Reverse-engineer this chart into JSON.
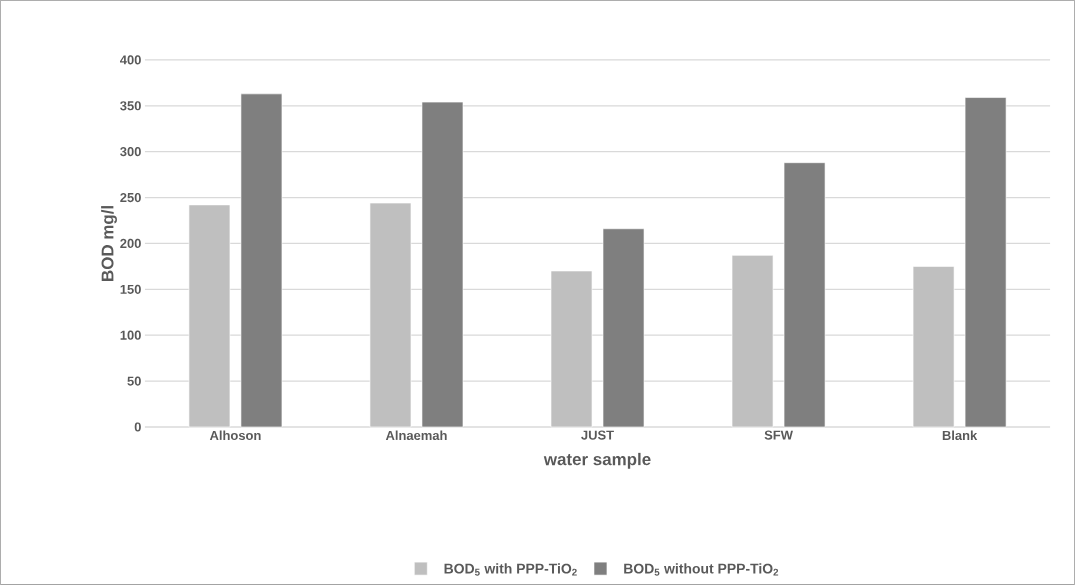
{
  "chart_data": {
    "type": "bar",
    "xlabel": "water sample",
    "ylabel": "BOD  mg/l",
    "categories": [
      "Alhoson",
      "Alnaemah",
      "JUST",
      "SFW",
      "Blank"
    ],
    "series": [
      {
        "name": "BOD$_{5}$ with PPP-TiO$_{2}$",
        "color": "#bfbfbf",
        "values": [
          242,
          244,
          170,
          187,
          175
        ]
      },
      {
        "name": "BOD$_{5}$ without PPP-TiO$_{2}$",
        "color": "#7f7f7f",
        "values": [
          363,
          354,
          216,
          288,
          359
        ]
      }
    ],
    "ylim": [
      0,
      400
    ],
    "yticks": [
      0,
      50,
      100,
      150,
      200,
      250,
      300,
      350,
      400
    ],
    "grid": "y",
    "legend": "bottom"
  }
}
